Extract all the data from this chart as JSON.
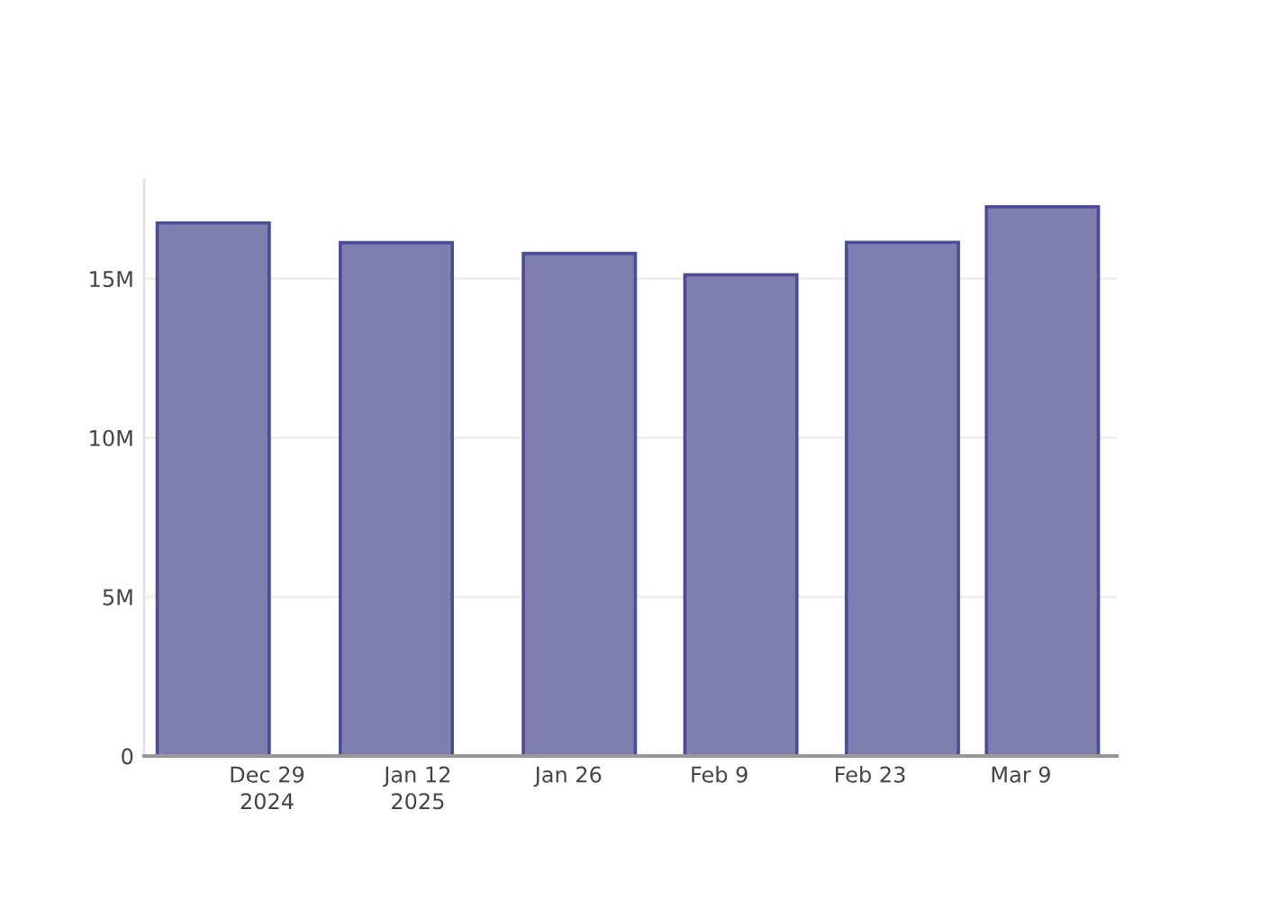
{
  "chart_data": {
    "type": "bar",
    "x": [
      "2024-12-24",
      "2025-01-10",
      "2025-01-27",
      "2025-02-11",
      "2025-02-26",
      "2025-03-11"
    ],
    "values": [
      16750000,
      16130000,
      15790000,
      15120000,
      16140000,
      17260000
    ],
    "color": "#7f7faf",
    "xlim": [
      "2024-12-17T14:00",
      "2025-03-17T22:00"
    ],
    "xticks": [
      {
        "value": "2024-12-29",
        "label": "Dec 29\n2024"
      },
      {
        "value": "2025-01-12",
        "label": "Jan 12\n2025"
      },
      {
        "value": "2025-01-26",
        "label": "Jan 26"
      },
      {
        "value": "2025-02-09",
        "label": "Feb 9"
      },
      {
        "value": "2025-02-23",
        "label": "Feb 23"
      },
      {
        "value": "2025-03-09",
        "label": "Mar 9"
      }
    ],
    "ylim": [
      0,
      18100000
    ],
    "yticks": [
      0,
      {
        "value": 5000000,
        "label": "5M"
      },
      {
        "value": 10000000,
        "label": "10M"
      },
      {
        "value": 15000000,
        "label": "15M"
      }
    ],
    "grid": "y"
  }
}
